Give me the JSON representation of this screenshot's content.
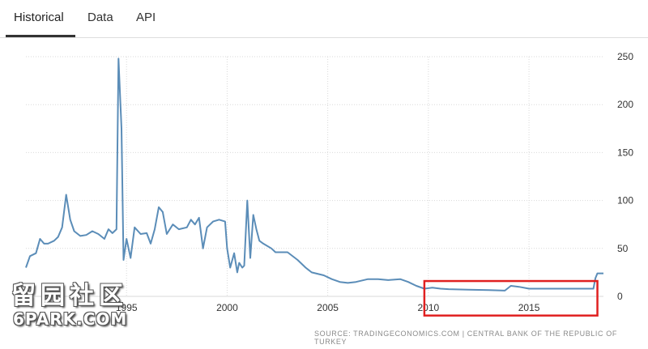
{
  "tabs": [
    {
      "label": "Historical",
      "active": true
    },
    {
      "label": "Data",
      "active": false
    },
    {
      "label": "API",
      "active": false
    }
  ],
  "source_text": "SOURCE: TRADINGECONOMICS.COM | CENTRAL BANK OF THE REPUBLIC OF TURKEY",
  "watermark": {
    "cn": "留园社区",
    "en": "6PARK.COM"
  },
  "colors": {
    "line": "#5b8db8",
    "grid": "#d9d9d9",
    "highlight": "#e02020",
    "text": "#333333"
  },
  "chart_data": {
    "type": "line",
    "title": "",
    "xlabel": "",
    "ylabel": "",
    "xlim": [
      1990,
      2018.7
    ],
    "ylim": [
      0,
      250
    ],
    "yticks": [
      0,
      50,
      100,
      150,
      200,
      250
    ],
    "xticks": [
      1995,
      2000,
      2005,
      2010,
      2015
    ],
    "grid": "horizontal-dotted",
    "y_axis_position": "right",
    "highlight_box": {
      "x_range": [
        2009.8,
        2018.4
      ],
      "y_range": [
        -20,
        16
      ]
    },
    "series": [
      {
        "values": [
          [
            1990.0,
            30
          ],
          [
            1990.2,
            42
          ],
          [
            1990.5,
            45
          ],
          [
            1990.7,
            60
          ],
          [
            1990.9,
            55
          ],
          [
            1991.1,
            55
          ],
          [
            1991.4,
            58
          ],
          [
            1991.6,
            62
          ],
          [
            1991.8,
            72
          ],
          [
            1992.0,
            106
          ],
          [
            1992.2,
            80
          ],
          [
            1992.4,
            68
          ],
          [
            1992.7,
            63
          ],
          [
            1993.0,
            64
          ],
          [
            1993.3,
            68
          ],
          [
            1993.6,
            65
          ],
          [
            1993.9,
            60
          ],
          [
            1994.1,
            70
          ],
          [
            1994.3,
            66
          ],
          [
            1994.5,
            70
          ],
          [
            1994.6,
            248
          ],
          [
            1994.75,
            175
          ],
          [
            1994.85,
            38
          ],
          [
            1995.0,
            60
          ],
          [
            1995.2,
            40
          ],
          [
            1995.4,
            72
          ],
          [
            1995.7,
            65
          ],
          [
            1996.0,
            66
          ],
          [
            1996.2,
            55
          ],
          [
            1996.4,
            70
          ],
          [
            1996.6,
            93
          ],
          [
            1996.8,
            88
          ],
          [
            1997.0,
            65
          ],
          [
            1997.3,
            75
          ],
          [
            1997.6,
            70
          ],
          [
            1998.0,
            72
          ],
          [
            1998.2,
            80
          ],
          [
            1998.4,
            75
          ],
          [
            1998.6,
            82
          ],
          [
            1998.8,
            50
          ],
          [
            1999.0,
            72
          ],
          [
            1999.3,
            78
          ],
          [
            1999.6,
            80
          ],
          [
            1999.9,
            78
          ],
          [
            2000.0,
            50
          ],
          [
            2000.15,
            30
          ],
          [
            2000.35,
            45
          ],
          [
            2000.5,
            25
          ],
          [
            2000.6,
            35
          ],
          [
            2000.75,
            30
          ],
          [
            2000.85,
            32
          ],
          [
            2001.0,
            100
          ],
          [
            2001.15,
            40
          ],
          [
            2001.3,
            85
          ],
          [
            2001.45,
            70
          ],
          [
            2001.6,
            58
          ],
          [
            2001.8,
            55
          ],
          [
            2002.2,
            50
          ],
          [
            2002.4,
            46
          ],
          [
            2003.0,
            46
          ],
          [
            2003.5,
            38
          ],
          [
            2003.9,
            30
          ],
          [
            2004.2,
            25
          ],
          [
            2004.8,
            22
          ],
          [
            2005.2,
            18
          ],
          [
            2005.6,
            15
          ],
          [
            2006.0,
            14
          ],
          [
            2006.4,
            15
          ],
          [
            2007.0,
            18
          ],
          [
            2007.5,
            18
          ],
          [
            2008.0,
            17
          ],
          [
            2008.6,
            18
          ],
          [
            2009.0,
            15
          ],
          [
            2009.4,
            11
          ],
          [
            2009.8,
            8
          ],
          [
            2010.2,
            9
          ],
          [
            2010.6,
            8
          ],
          [
            2011.0,
            7.5
          ],
          [
            2012.0,
            7
          ],
          [
            2013.0,
            6.5
          ],
          [
            2013.8,
            6
          ],
          [
            2014.1,
            11
          ],
          [
            2014.5,
            10
          ],
          [
            2015.0,
            8
          ],
          [
            2016.0,
            8
          ],
          [
            2017.0,
            8
          ],
          [
            2017.8,
            8
          ],
          [
            2018.2,
            8
          ],
          [
            2018.3,
            19
          ],
          [
            2018.4,
            24
          ],
          [
            2018.7,
            24
          ]
        ]
      }
    ]
  }
}
